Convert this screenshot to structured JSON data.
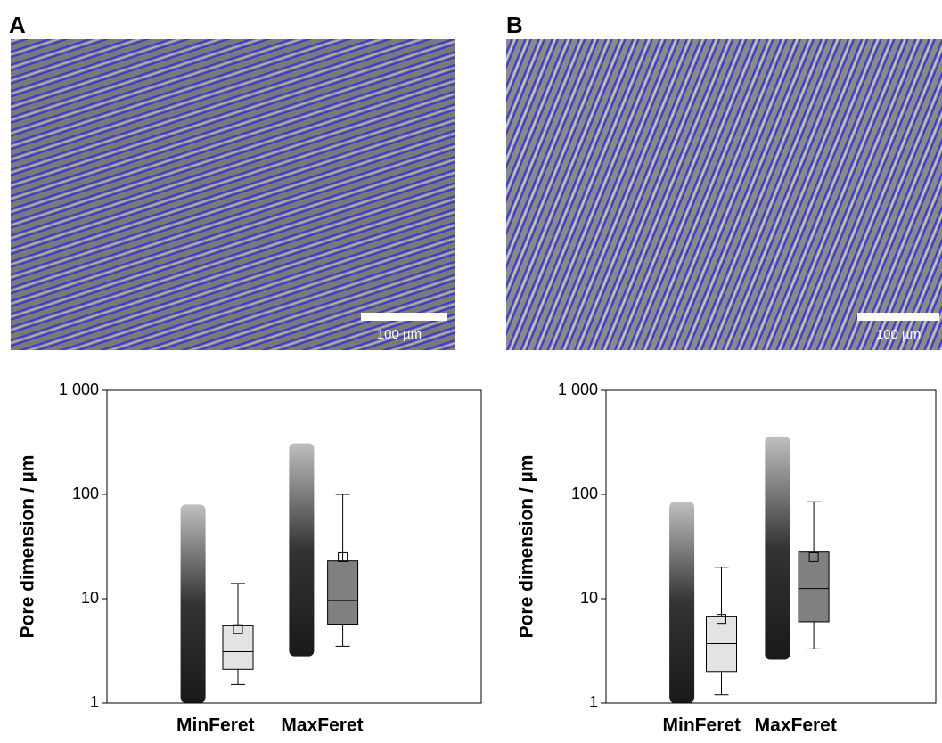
{
  "panel_labels": [
    "A",
    "B"
  ],
  "scale_bars": [
    "100 µm",
    "100 µm"
  ],
  "chart_data": [
    {
      "type": "box",
      "ylabel": "Pore dimension / µm",
      "log_y": true,
      "ylim": [
        1,
        1000
      ],
      "yticks": [
        1,
        10,
        100,
        {
          "value": 1000,
          "label": "1 000"
        }
      ],
      "categories": [
        "MinFeret",
        "MaxFeret"
      ],
      "boxes": [
        {
          "min": 1.5,
          "q1": 2.1,
          "median": 3.1,
          "q3": 5.5,
          "max": 14,
          "mean": 5.1,
          "points_min": 1,
          "points_max": 80,
          "color": "#e3e3e3"
        },
        {
          "min": 3.5,
          "q1": 5.7,
          "median": 9.6,
          "q3": 23,
          "max": 100,
          "mean": 25,
          "points_min": 2.8,
          "points_max": 310,
          "color": "#808080"
        }
      ]
    },
    {
      "type": "box",
      "ylabel": "Pore dimension / µm",
      "log_y": true,
      "ylim": [
        1,
        1000
      ],
      "yticks": [
        1,
        10,
        100,
        {
          "value": 1000,
          "label": "1 000"
        }
      ],
      "categories": [
        "MinFeret",
        "MaxFeret"
      ],
      "boxes": [
        {
          "min": 1.2,
          "q1": 2.0,
          "median": 3.7,
          "q3": 6.7,
          "max": 20,
          "mean": 6.4,
          "points_min": 1,
          "points_max": 85,
          "color": "#e3e3e3"
        },
        {
          "min": 3.3,
          "q1": 6,
          "median": 12.5,
          "q3": 28,
          "max": 85,
          "mean": 25,
          "points_min": 2.6,
          "points_max": 360,
          "color": "#808080"
        }
      ]
    }
  ]
}
